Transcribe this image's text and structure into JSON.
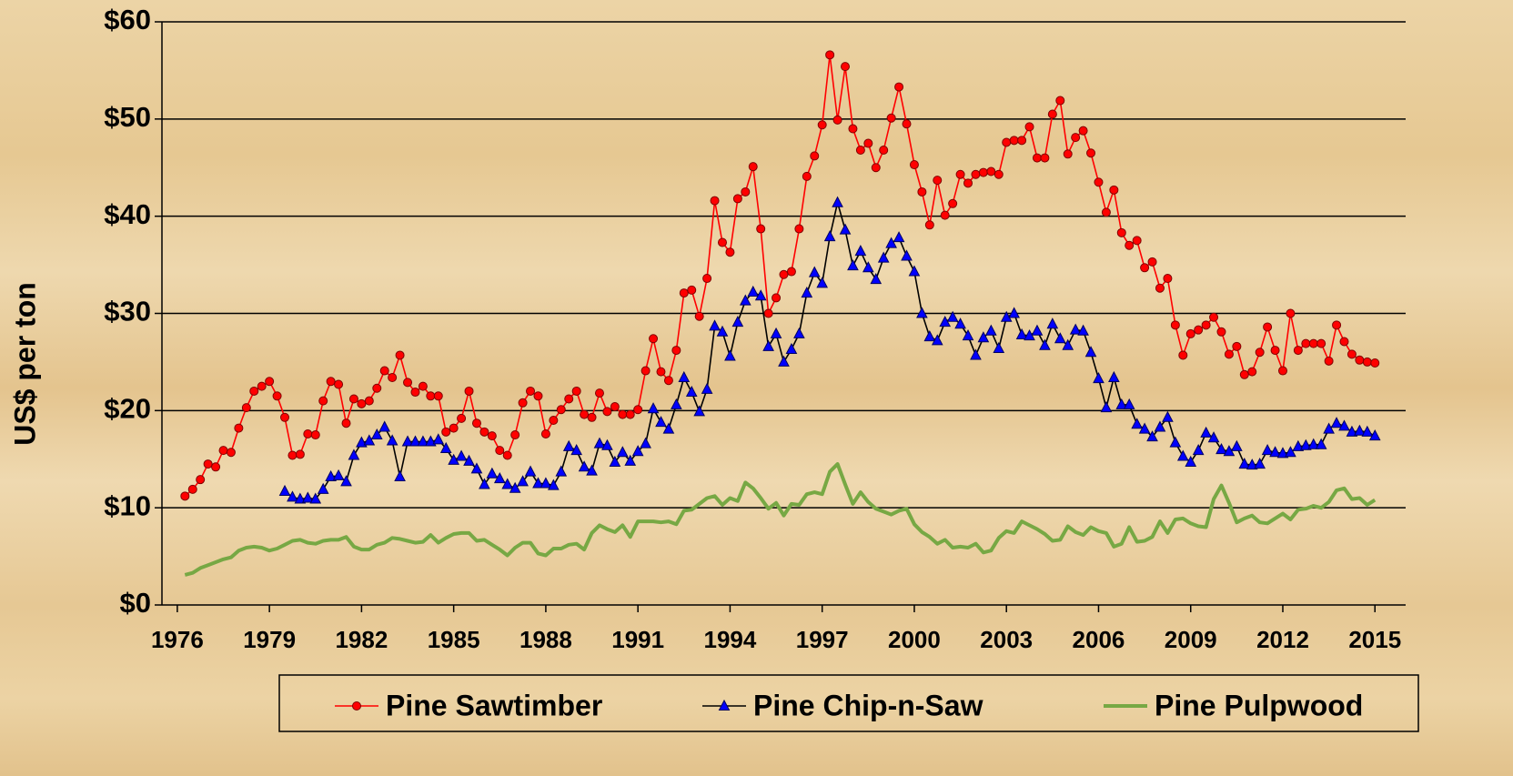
{
  "chart_data": {
    "type": "line",
    "ylabel": "US$ per ton",
    "xlim": [
      1975.5,
      2016
    ],
    "ylim": [
      0,
      60
    ],
    "yticks": [
      {
        "value": 0,
        "label": "$0"
      },
      {
        "value": 10,
        "label": "$10"
      },
      {
        "value": 20,
        "label": "$20"
      },
      {
        "value": 30,
        "label": "$30"
      },
      {
        "value": 40,
        "label": "$40"
      },
      {
        "value": 50,
        "label": "$50"
      },
      {
        "value": 60,
        "label": "$60"
      }
    ],
    "xticks": [
      1976,
      1979,
      1982,
      1985,
      1988,
      1991,
      1994,
      1997,
      2000,
      2003,
      2006,
      2009,
      2012,
      2015
    ],
    "grid": true,
    "legend": "bottom",
    "x": [
      1976.25,
      1976.5,
      1976.75,
      1977,
      1977.25,
      1977.5,
      1977.75,
      1978,
      1978.25,
      1978.5,
      1978.75,
      1979,
      1979.25,
      1979.5,
      1979.75,
      1980,
      1980.25,
      1980.5,
      1980.75,
      1981,
      1981.25,
      1981.5,
      1981.75,
      1982,
      1982.25,
      1982.5,
      1982.75,
      1983,
      1983.25,
      1983.5,
      1983.75,
      1984,
      1984.25,
      1984.5,
      1984.75,
      1985,
      1985.25,
      1985.5,
      1985.75,
      1986,
      1986.25,
      1986.5,
      1986.75,
      1987,
      1987.25,
      1987.5,
      1987.75,
      1988,
      1988.25,
      1988.5,
      1988.75,
      1989,
      1989.25,
      1989.5,
      1989.75,
      1990,
      1990.25,
      1990.5,
      1990.75,
      1991,
      1991.25,
      1991.5,
      1991.75,
      1992,
      1992.25,
      1992.5,
      1992.75,
      1993,
      1993.25,
      1993.5,
      1993.75,
      1994,
      1994.25,
      1994.5,
      1994.75,
      1995,
      1995.25,
      1995.5,
      1995.75,
      1996,
      1996.25,
      1996.5,
      1996.75,
      1997,
      1997.25,
      1997.5,
      1997.75,
      1998,
      1998.25,
      1998.5,
      1998.75,
      1999,
      1999.25,
      1999.5,
      1999.75,
      2000,
      2000.25,
      2000.5,
      2000.75,
      2001,
      2001.25,
      2001.5,
      2001.75,
      2002,
      2002.25,
      2002.5,
      2002.75,
      2003,
      2003.25,
      2003.5,
      2003.75,
      2004,
      2004.25,
      2004.5,
      2004.75,
      2005,
      2005.25,
      2005.5,
      2005.75,
      2006,
      2006.25,
      2006.5,
      2006.75,
      2007,
      2007.25,
      2007.5,
      2007.75,
      2008,
      2008.25,
      2008.5,
      2008.75,
      2009,
      2009.25,
      2009.5,
      2009.75,
      2010,
      2010.25,
      2010.5,
      2010.75,
      2011,
      2011.25,
      2011.5,
      2011.75,
      2012,
      2012.25,
      2012.5,
      2012.75,
      2013,
      2013.25,
      2013.5,
      2013.75,
      2014,
      2014.25,
      2014.5,
      2014.75,
      2015
    ],
    "series": [
      {
        "name": "Pine Sawtimber",
        "color": "#ff0000",
        "line_color": "#ff0000",
        "marker": "circle",
        "values": [
          11.2,
          11.9,
          12.9,
          14.5,
          14.2,
          15.9,
          15.7,
          18.2,
          20.3,
          22.0,
          22.5,
          23.0,
          21.5,
          19.3,
          15.4,
          15.5,
          17.6,
          17.5,
          21.0,
          23.0,
          22.7,
          18.7,
          21.2,
          20.7,
          21.0,
          22.3,
          24.1,
          23.4,
          25.7,
          22.9,
          21.9,
          22.5,
          21.5,
          21.5,
          17.8,
          18.2,
          19.2,
          22.0,
          18.7,
          17.8,
          17.4,
          15.9,
          15.4,
          17.5,
          20.8,
          22.0,
          21.5,
          17.6,
          19.0,
          20.1,
          21.2,
          22.0,
          19.6,
          19.3,
          21.8,
          19.9,
          20.4,
          19.6,
          19.6,
          20.1,
          24.1,
          27.4,
          24.0,
          23.1,
          26.2,
          32.1,
          32.4,
          29.7,
          33.6,
          41.6,
          37.3,
          36.3,
          41.8,
          42.5,
          45.1,
          38.7,
          30.0,
          31.6,
          34.0,
          34.3,
          38.7,
          44.1,
          46.2,
          49.4,
          56.6,
          49.9,
          55.4,
          49.0,
          46.8,
          47.5,
          45.0,
          46.8,
          50.1,
          53.3,
          49.5,
          45.3,
          42.5,
          39.1,
          43.7,
          40.1,
          41.3,
          44.3,
          43.4,
          44.3,
          44.5,
          44.6,
          44.3,
          47.6,
          47.8,
          47.8,
          49.2,
          46.0,
          46.0,
          50.5,
          51.9,
          46.4,
          48.1,
          48.8,
          46.5,
          43.5,
          40.4,
          42.7,
          38.3,
          37.0,
          37.5,
          34.7,
          35.3,
          32.6,
          33.6,
          28.8,
          25.7,
          27.9,
          28.3,
          28.8,
          29.6,
          28.1,
          25.8,
          26.6,
          23.7,
          24.0,
          26.0,
          28.6,
          26.2,
          24.1,
          30.0,
          26.2,
          26.9,
          26.9,
          26.9,
          25.1,
          28.8,
          27.1,
          25.8,
          25.2,
          25.0,
          24.9
        ]
      },
      {
        "name": "Pine Chip-n-Saw",
        "color": "#0000ff",
        "line_color": "#000000",
        "marker": "triangle",
        "values": [
          null,
          null,
          null,
          null,
          null,
          null,
          null,
          null,
          null,
          null,
          null,
          null,
          null,
          11.7,
          11.1,
          10.9,
          11.0,
          10.9,
          11.9,
          13.2,
          13.3,
          12.7,
          15.4,
          16.7,
          16.9,
          17.5,
          18.3,
          16.9,
          13.2,
          16.8,
          16.8,
          16.8,
          16.8,
          17.0,
          16.1,
          14.9,
          15.3,
          14.8,
          14.0,
          12.4,
          13.5,
          13.0,
          12.4,
          12.0,
          12.7,
          13.7,
          12.5,
          12.5,
          12.3,
          13.7,
          16.3,
          15.9,
          14.2,
          13.8,
          16.6,
          16.4,
          14.7,
          15.7,
          14.8,
          15.8,
          16.6,
          20.2,
          18.8,
          18.1,
          20.6,
          23.4,
          21.9,
          19.9,
          22.2,
          28.7,
          28.1,
          25.6,
          29.1,
          31.3,
          32.2,
          31.8,
          26.6,
          27.9,
          25.0,
          26.3,
          27.9,
          32.1,
          34.2,
          33.1,
          37.9,
          41.4,
          38.6,
          34.9,
          36.4,
          34.7,
          33.5,
          35.7,
          37.2,
          37.8,
          35.9,
          34.3,
          30.0,
          27.6,
          27.2,
          29.1,
          29.6,
          28.9,
          27.7,
          25.7,
          27.5,
          28.2,
          26.4,
          29.6,
          30.0,
          27.8,
          27.7,
          28.2,
          26.7,
          28.9,
          27.4,
          26.7,
          28.3,
          28.2,
          26.0,
          23.3,
          20.3,
          23.4,
          20.6,
          20.6,
          18.6,
          18.1,
          17.3,
          18.3,
          19.3,
          16.7,
          15.3,
          14.7,
          15.9,
          17.7,
          17.2,
          16.0,
          15.8,
          16.3,
          14.5,
          14.4,
          14.5,
          15.9,
          15.7,
          15.6,
          15.7,
          16.3,
          16.4,
          16.5,
          16.5,
          18.1,
          18.7,
          18.4,
          17.8,
          17.9,
          17.8,
          17.4
        ]
      },
      {
        "name": "Pine Pulpwood",
        "color": "#77a844",
        "line_color": "#77a844",
        "marker": "none",
        "values": [
          3.1,
          3.3,
          3.8,
          4.1,
          4.4,
          4.7,
          4.9,
          5.6,
          5.9,
          6.0,
          5.9,
          5.6,
          5.8,
          6.2,
          6.6,
          6.7,
          6.4,
          6.3,
          6.6,
          6.7,
          6.7,
          7.0,
          6.0,
          5.7,
          5.7,
          6.2,
          6.4,
          6.9,
          6.8,
          6.6,
          6.4,
          6.5,
          7.2,
          6.4,
          6.9,
          7.3,
          7.4,
          7.4,
          6.6,
          6.7,
          6.2,
          5.7,
          5.1,
          5.9,
          6.4,
          6.4,
          5.3,
          5.1,
          5.8,
          5.8,
          6.2,
          6.3,
          5.7,
          7.4,
          8.2,
          7.8,
          7.5,
          8.2,
          7.0,
          8.6,
          8.6,
          8.6,
          8.5,
          8.6,
          8.3,
          9.7,
          9.8,
          10.4,
          11.0,
          11.2,
          10.3,
          11.0,
          10.7,
          12.6,
          12.0,
          11.0,
          9.9,
          10.5,
          9.2,
          10.4,
          10.3,
          11.4,
          11.6,
          11.4,
          13.7,
          14.5,
          12.4,
          10.4,
          11.6,
          10.6,
          9.9,
          9.6,
          9.3,
          9.7,
          9.9,
          8.3,
          7.5,
          7.0,
          6.3,
          6.7,
          5.9,
          6.0,
          5.9,
          6.3,
          5.4,
          5.6,
          6.9,
          7.6,
          7.4,
          8.6,
          8.2,
          7.8,
          7.3,
          6.6,
          6.7,
          8.1,
          7.5,
          7.2,
          8.0,
          7.6,
          7.4,
          6.0,
          6.3,
          8.0,
          6.5,
          6.6,
          7.0,
          8.6,
          7.4,
          8.8,
          8.9,
          8.4,
          8.1,
          8.0,
          10.9,
          12.3,
          10.5,
          8.5,
          8.9,
          9.2,
          8.5,
          8.4,
          8.9,
          9.4,
          8.8,
          9.8,
          9.9,
          10.2,
          10.0,
          10.6,
          11.8,
          12.0,
          10.9,
          11.0,
          10.3,
          10.8
        ]
      }
    ]
  }
}
